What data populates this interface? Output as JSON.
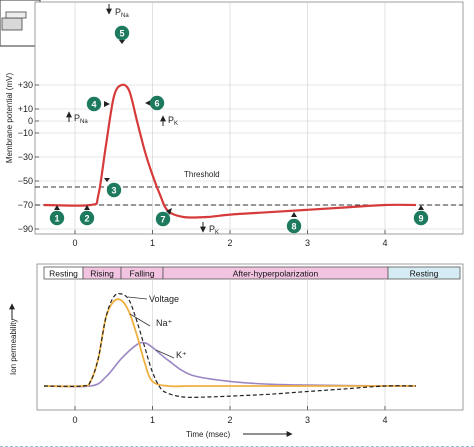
{
  "top_chart": {
    "ylabel": "Membrane potential (mV)",
    "y_ticks": [
      "+30",
      "+10",
      "0",
      "−10",
      "−30",
      "−50",
      "−70",
      "−90"
    ],
    "x_ticks": [
      "0",
      "1",
      "2",
      "3",
      "4"
    ],
    "threshold_label": "Threshold",
    "permeability_labels": {
      "p_na_top": "P",
      "p_na_top_sub": "Na",
      "p_na_left": "P",
      "p_na_left_sub": "Na",
      "p_k_right": "P",
      "p_k_right_sub": "K",
      "p_k_bottom": "P",
      "p_k_bottom_sub": "K"
    },
    "steps": [
      "1",
      "2",
      "3",
      "4",
      "5",
      "6",
      "7",
      "8",
      "9"
    ]
  },
  "phases": [
    "Resting",
    "Rising",
    "Falling",
    "After-hyperpolarization",
    "Resting"
  ],
  "bottom_chart": {
    "ylabel": "Ion permeability",
    "x_ticks": [
      "0",
      "1",
      "2",
      "3",
      "4"
    ],
    "xlabel": "Time (msec)",
    "legend": [
      "Voltage",
      "Na⁺",
      "K⁺"
    ]
  },
  "colors": {
    "membrane_potential": "#d63a3a",
    "na_permeability": "#f0b040",
    "k_permeability": "#9b86c4",
    "step_marker": "#1d7a5f",
    "phase_band_pink": "#f2c4e2",
    "phase_band_blue": "#d6ecf4"
  },
  "chart_data": [
    {
      "type": "line",
      "ylabel": "Membrane potential (mV)",
      "series": [
        {
          "x": [
            -0.4,
            0.2,
            0.3,
            0.4,
            0.5,
            0.6,
            0.7,
            0.8,
            0.9,
            1.0,
            1.1,
            1.2,
            1.4,
            1.7,
            2.0,
            2.5,
            3.0,
            3.5,
            4.0,
            4.4
          ],
          "y": [
            -70,
            -70,
            -62,
            -20,
            20,
            30,
            25,
            0,
            -25,
            -45,
            -62,
            -75,
            -80,
            -80,
            -78,
            -76,
            -74,
            -72,
            -70,
            -70
          ]
        }
      ],
      "threshold": -55,
      "ylim": [
        -95,
        40
      ],
      "xlim": [
        -0.4,
        4.4
      ]
    },
    {
      "type": "line",
      "xlabel": "Time (msec)",
      "ylabel": "Ion permeability",
      "series": [
        {
          "name": "Voltage",
          "x": [
            -0.4,
            0.1,
            0.2,
            0.3,
            0.4,
            0.5,
            0.6,
            0.7,
            0.8,
            0.9,
            1.0,
            1.1,
            1.2,
            1.4,
            1.7,
            2.0,
            2.5,
            3.0,
            3.5,
            4.0,
            4.4
          ],
          "y": [
            0.0,
            0.0,
            0.05,
            0.3,
            0.75,
            0.97,
            1.0,
            0.93,
            0.7,
            0.42,
            0.15,
            -0.02,
            -0.08,
            -0.12,
            -0.12,
            -0.11,
            -0.09,
            -0.06,
            -0.03,
            0.0,
            0.0
          ]
        },
        {
          "name": "Na⁺",
          "x": [
            -0.4,
            0.1,
            0.2,
            0.3,
            0.4,
            0.5,
            0.6,
            0.7,
            0.8,
            0.9,
            1.0,
            1.2,
            1.5,
            2.0,
            3.0,
            4.4
          ],
          "y": [
            0.0,
            0.0,
            0.05,
            0.3,
            0.75,
            0.92,
            0.93,
            0.8,
            0.55,
            0.25,
            0.05,
            0.0,
            0.0,
            0.0,
            0.0,
            0.0
          ]
        },
        {
          "name": "K⁺",
          "x": [
            -0.4,
            0.2,
            0.4,
            0.6,
            0.8,
            0.9,
            1.0,
            1.2,
            1.5,
            2.0,
            2.5,
            3.0,
            4.0,
            4.4
          ],
          "y": [
            0.0,
            0.0,
            0.1,
            0.3,
            0.45,
            0.47,
            0.42,
            0.28,
            0.12,
            0.05,
            0.02,
            0.01,
            0.0,
            0.0
          ]
        }
      ],
      "xlim": [
        -0.4,
        4.4
      ]
    }
  ]
}
